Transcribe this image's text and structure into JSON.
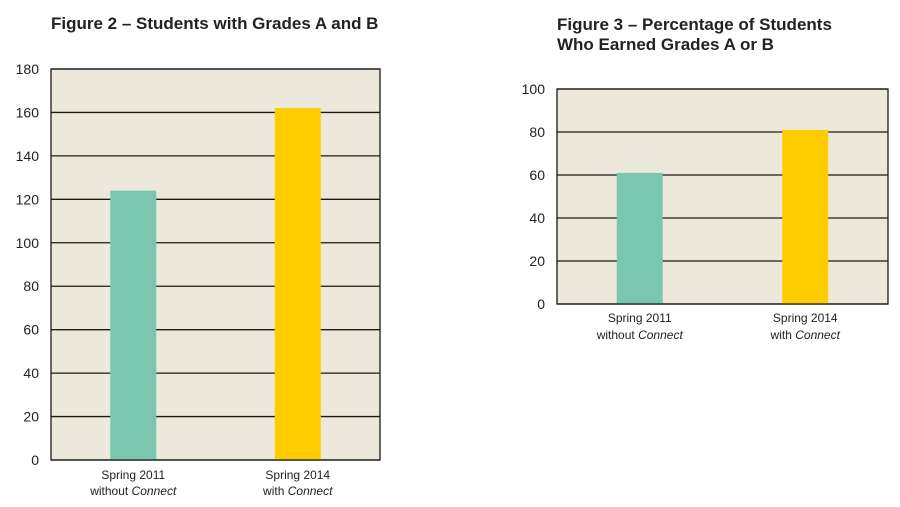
{
  "chart_data": [
    {
      "type": "bar",
      "title": "Figure 2 – Students with Grades A and B",
      "categories": [
        {
          "line1": "Spring 2011",
          "line2_prefix": "without ",
          "line2_em": "Connect"
        },
        {
          "line1": "Spring 2014",
          "line2_prefix": "with ",
          "line2_em": "Connect"
        }
      ],
      "values": [
        124,
        162
      ],
      "colors": [
        "#7bc6ae",
        "#ffcc00"
      ],
      "ylim": [
        0,
        180
      ],
      "yticks": [
        "0",
        "20",
        "40",
        "60",
        "80",
        "100",
        "120",
        "140",
        "160",
        "180"
      ],
      "grid": true,
      "plot_background": "#ece9dc"
    },
    {
      "type": "bar",
      "title_lines": [
        "Figure 3 – Percentage of Students",
        "Who Earned Grades A or B"
      ],
      "categories": [
        {
          "line1": "Spring 2011",
          "line2_prefix": "without ",
          "line2_em": "Connect"
        },
        {
          "line1": "Spring 2014",
          "line2_prefix": "with ",
          "line2_em": "Connect"
        }
      ],
      "values": [
        61,
        81
      ],
      "colors": [
        "#7bc6ae",
        "#ffcc00"
      ],
      "ylim": [
        0,
        100
      ],
      "yticks": [
        "0",
        "20",
        "40",
        "60",
        "80",
        "100"
      ],
      "grid": true,
      "plot_background": "#ece9dc"
    }
  ]
}
